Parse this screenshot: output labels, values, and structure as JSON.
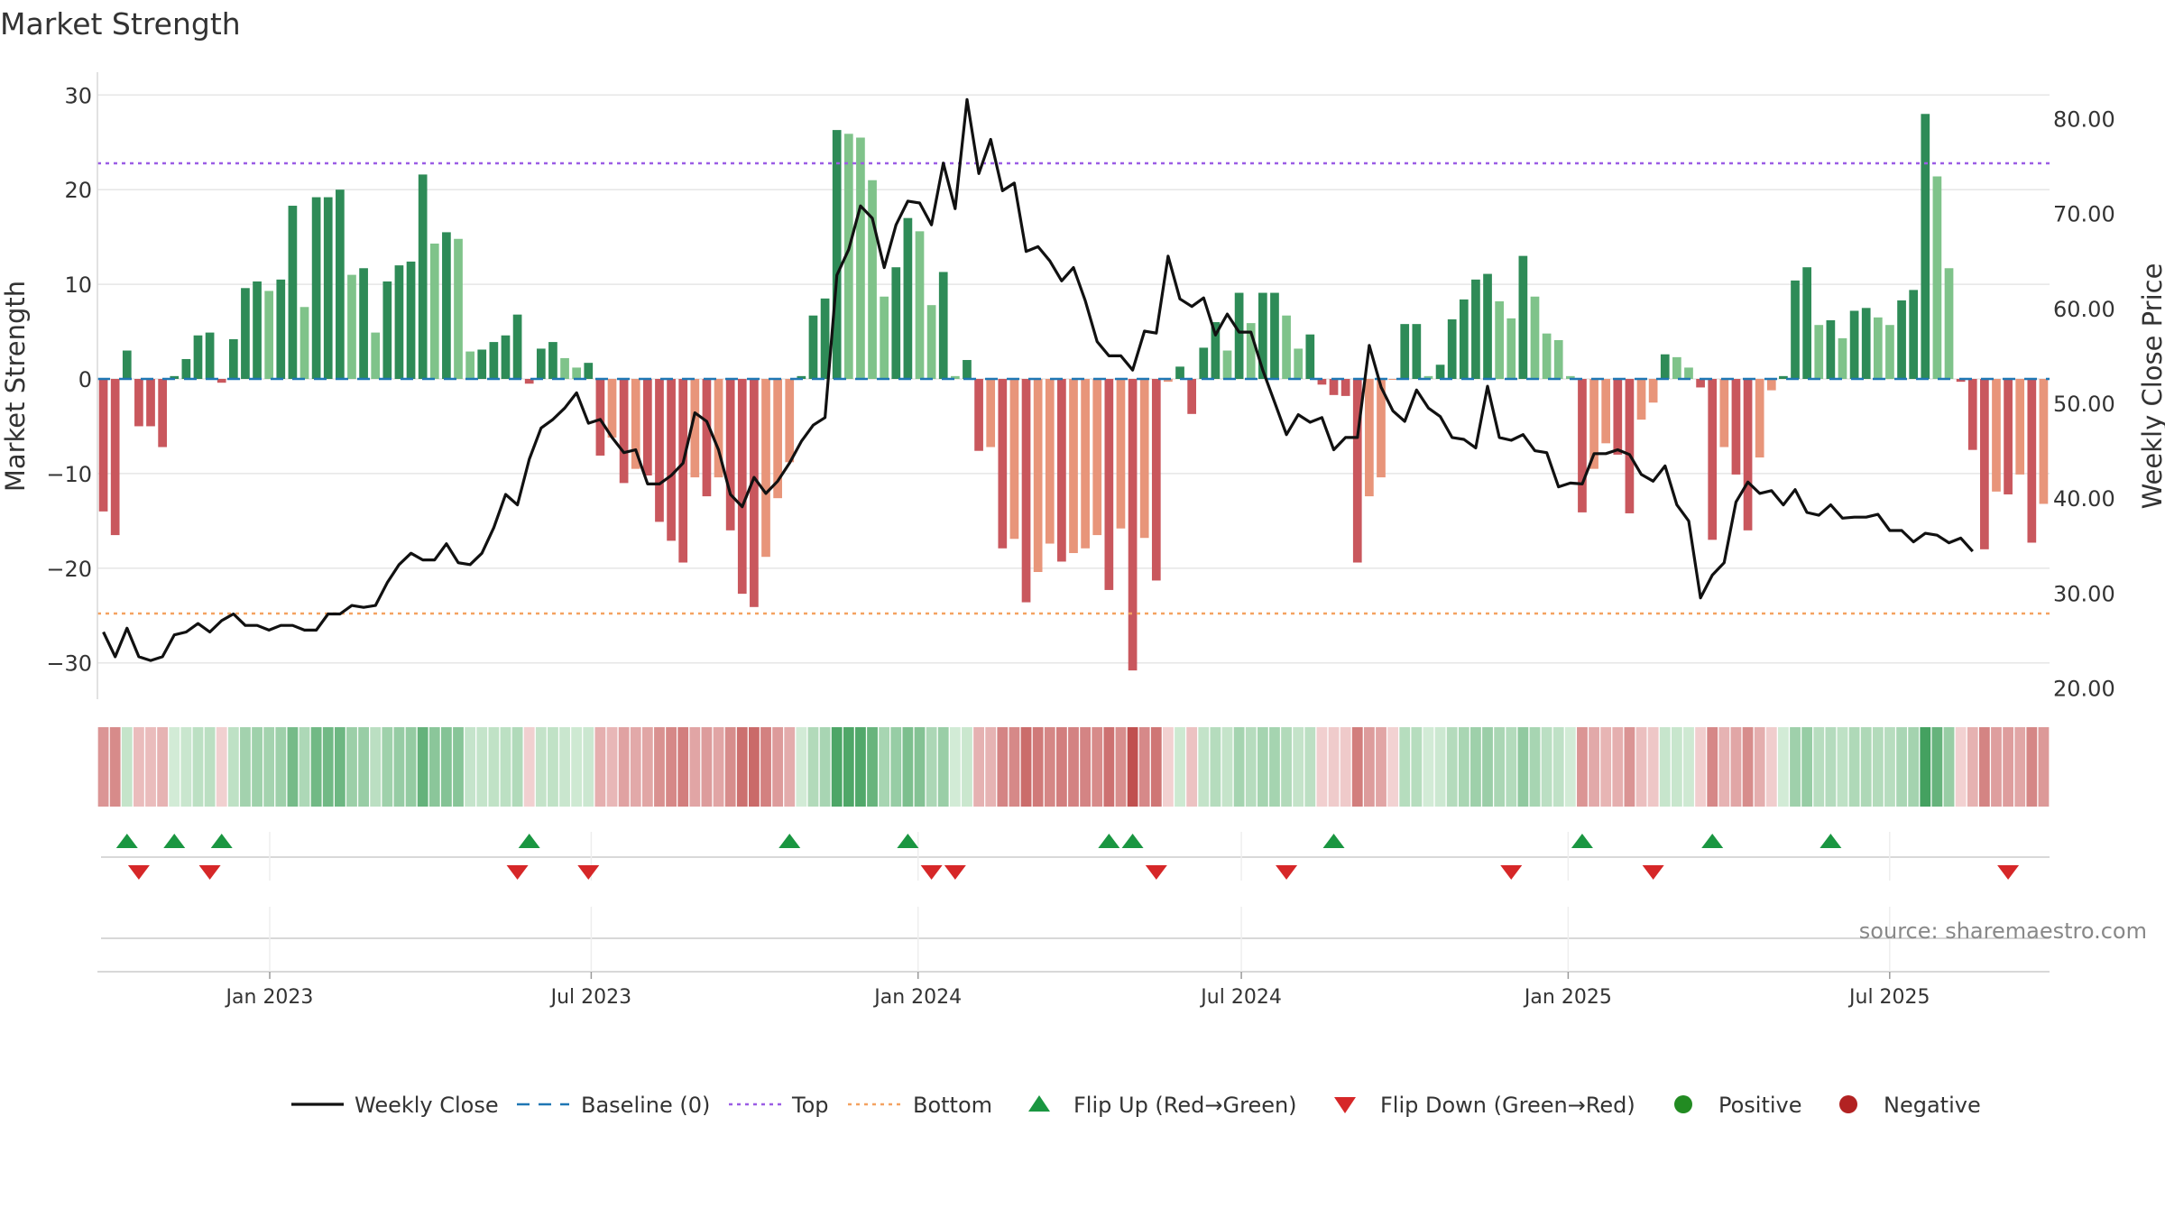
{
  "title": "Market Strength",
  "source": "source: sharemaestro.com",
  "chart_data": {
    "type": "bar+line",
    "title": "Market Strength",
    "ylabel_left": "Market Strength",
    "ylabel_right": "Weekly Close Price",
    "ylim_left": [
      -33,
      31
    ],
    "ylim_right": [
      18,
      82
    ],
    "yticks_left": [
      30,
      20,
      10,
      0,
      -10,
      -20,
      -30
    ],
    "yticks_right": [
      80,
      70,
      60,
      50,
      40,
      30,
      20
    ],
    "yticks_right_labels": [
      "80.00",
      "70.00",
      "60.00",
      "50.00",
      "40.00",
      "30.00",
      "20.00"
    ],
    "x_date_range": [
      "2022-09-26",
      "2025-09-29"
    ],
    "x_ticks": [
      {
        "date": "2023-01-01",
        "label": "Jan 2023"
      },
      {
        "date": "2023-07-01",
        "label": "Jul 2023"
      },
      {
        "date": "2024-01-01",
        "label": "Jan 2024"
      },
      {
        "date": "2024-07-01",
        "label": "Jul 2024"
      },
      {
        "date": "2025-01-01",
        "label": "Jan 2025"
      },
      {
        "date": "2025-07-01",
        "label": "Jul 2025"
      }
    ],
    "top_line": 24,
    "bottom_line": -24,
    "baseline": 0,
    "strength": [
      -14,
      -16.5,
      3,
      -5,
      -5,
      -7.2,
      0.3,
      2.1,
      4.6,
      4.9,
      -0.4,
      4.2,
      9.6,
      10.3,
      9.3,
      10.5,
      18.3,
      7.6,
      19.2,
      19.2,
      20,
      11,
      11.7,
      4.9,
      10.3,
      12,
      12.4,
      21.6,
      14.3,
      15.5,
      14.8,
      2.9,
      3.1,
      3.9,
      4.6,
      6.8,
      -0.5,
      3.2,
      3.9,
      2.2,
      1.2,
      1.7,
      -8.1,
      -6.2,
      -11,
      -9.5,
      -10.2,
      -15.1,
      -17.1,
      -19.4,
      -10.4,
      -12.4,
      -10.4,
      -16,
      -22.7,
      -24.1,
      -18.8,
      -12.6,
      -8.8,
      0.3,
      6.7,
      8.5,
      26.3,
      25.9,
      25.5,
      21,
      8.7,
      11.8,
      17,
      15.6,
      7.8,
      11.3,
      0.3,
      2,
      -7.6,
      -7.2,
      -17.9,
      -16.9,
      -23.6,
      -20.4,
      -17.4,
      -19.3,
      -18.4,
      -17.9,
      -16.5,
      -22.3,
      -15.8,
      -30.8,
      -16.8,
      -21.3,
      -0.3,
      1.3,
      -3.7,
      3.3,
      6,
      3,
      9.1,
      5.9,
      9.1,
      9.1,
      6.7,
      3.2,
      4.7,
      -0.6,
      -1.7,
      -1.8,
      -19.4,
      -12.4,
      -10.4,
      -0.1,
      5.8,
      5.8,
      0.3,
      1.5,
      6.3,
      8.4,
      10.5,
      11.1,
      8.2,
      6.4,
      13,
      8.7,
      4.8,
      4.1,
      0.3,
      -14.1,
      -9.5,
      -6.8,
      -8,
      -14.2,
      -4.3,
      -2.5,
      2.6,
      2.3,
      1.2,
      -0.9,
      -17,
      -7.2,
      -10.1,
      -16,
      -8.3,
      -1.2,
      0.3,
      10.4,
      11.8,
      5.7,
      6.2,
      4.3,
      7.2,
      7.5,
      6.5,
      5.7,
      8.3,
      9.4,
      28,
      21.4,
      11.7,
      -0.3,
      -7.5,
      -18,
      -11.9,
      -12.2,
      -10.1,
      -17.3,
      -13.2
    ],
    "weekly_close": [
      25.9,
      23.3,
      26.3,
      23.3,
      22.9,
      23.3,
      25.6,
      25.9,
      26.8,
      25.9,
      27.1,
      27.8,
      26.6,
      26.6,
      26.1,
      26.6,
      26.6,
      26.1,
      26.1,
      27.8,
      27.8,
      28.7,
      28.5,
      28.7,
      31.1,
      33,
      34.2,
      33.5,
      33.5,
      35.2,
      33.2,
      33,
      34.2,
      36.9,
      40.4,
      39.3,
      44.1,
      47.4,
      48.3,
      49.5,
      51.1,
      47.9,
      48.3,
      46.4,
      44.8,
      45.1,
      41.5,
      41.5,
      42.4,
      43.7,
      49,
      48.1,
      45.1,
      40.4,
      39.1,
      42.2,
      40.5,
      41.8,
      43.7,
      46,
      47.7,
      48.5,
      63.5,
      66.2,
      70.8,
      69.5,
      64.3,
      68.8,
      71.3,
      71.1,
      68.8,
      75.3,
      70.5,
      82,
      74.2,
      77.8,
      72.4,
      73.2,
      66,
      66.5,
      65,
      62.9,
      64.3,
      60.8,
      56.5,
      55,
      55,
      53.5,
      57.6,
      57.4,
      65.5,
      61,
      60.2,
      61.1,
      57.2,
      59.4,
      57.5,
      57.5,
      53.5,
      50.1,
      46.7,
      48.8,
      48,
      48.5,
      45.1,
      46.4,
      46.4,
      56.1,
      51.7,
      49.2,
      48.1,
      51.4,
      49.5,
      48.6,
      46.4,
      46.2,
      45.3,
      51.8,
      46.4,
      46.1,
      46.7,
      45,
      44.8,
      41.2,
      41.6,
      41.5,
      44.7,
      44.7,
      45.1,
      44.6,
      42.5,
      41.8,
      43.4,
      39.3,
      37.6,
      29.5,
      31.9,
      33.2,
      39.6,
      41.7,
      40.5,
      40.8,
      39.3,
      40.9,
      38.5,
      38.2,
      39.3,
      37.9,
      38,
      38,
      38.3,
      36.6,
      36.6,
      35.4,
      36.3,
      36.1,
      35.3,
      35.8,
      34.4
    ],
    "flip_up_weeks": [
      2,
      6,
      10,
      36,
      58,
      68,
      85,
      87,
      104,
      125,
      136,
      146
    ],
    "flip_down_weeks": [
      3,
      9,
      35,
      41,
      70,
      72,
      89,
      100,
      119,
      131,
      161
    ],
    "colors": {
      "positive_strong": "#2e8b57",
      "positive_weak": "#7fc38a",
      "negative_strong": "#c9575d",
      "negative_weak": "#e8957a",
      "line": "#111111",
      "baseline": "#1f77b4",
      "top": "#9b5de5",
      "bottom": "#f4a261",
      "flip_up": "#1a9641",
      "flip_down": "#d62728",
      "dot_positive": "#228b22",
      "dot_negative": "#b22222"
    },
    "legend": [
      {
        "key": "line",
        "label": "Weekly Close"
      },
      {
        "key": "baseline",
        "label": "Baseline (0)"
      },
      {
        "key": "top",
        "label": "Top"
      },
      {
        "key": "bottom",
        "label": "Bottom"
      },
      {
        "key": "up",
        "label": "Flip Up (Red→Green)"
      },
      {
        "key": "down",
        "label": "Flip Down (Green→Red)"
      },
      {
        "key": "pos",
        "label": "Positive"
      },
      {
        "key": "neg",
        "label": "Negative"
      }
    ]
  }
}
